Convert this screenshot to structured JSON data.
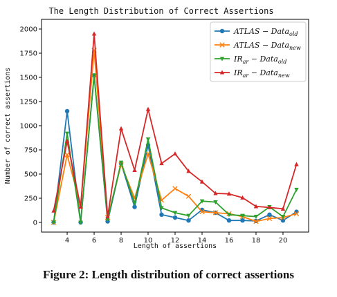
{
  "chart_data": {
    "type": "line",
    "title": "The Length Distribution of Correct Assertions",
    "xlabel": "Length of assertions",
    "ylabel": "Number of correct assertions",
    "x": [
      3,
      4,
      5,
      6,
      7,
      8,
      9,
      10,
      11,
      12,
      13,
      14,
      15,
      16,
      17,
      18,
      19,
      20,
      21
    ],
    "xlim": [
      2.1,
      21.9
    ],
    "ylim": [
      -100,
      2100
    ],
    "xticks": [
      4,
      6,
      8,
      10,
      12,
      14,
      16,
      18,
      20
    ],
    "yticks": [
      0,
      250,
      500,
      750,
      1000,
      1250,
      1500,
      1750,
      2000
    ],
    "grid": false,
    "legend_position": "top-right",
    "series": [
      {
        "name": "ATLAS − Data",
        "subscript": "old",
        "color": "#1f77b4",
        "marker": "circle",
        "values": [
          0,
          1150,
          0,
          1520,
          10,
          610,
          160,
          800,
          80,
          50,
          20,
          130,
          100,
          20,
          20,
          15,
          80,
          20,
          110
        ]
      },
      {
        "name": "ATLAS − Data",
        "subscript": "new",
        "color": "#ff7f0e",
        "marker": "x",
        "values": [
          0,
          700,
          170,
          1780,
          50,
          600,
          250,
          710,
          230,
          350,
          270,
          110,
          100,
          90,
          60,
          10,
          40,
          50,
          90
        ]
      },
      {
        "name": "IR",
        "sub_before": "ar",
        "name_after": " − Data",
        "subscript": "old",
        "color": "#2ca02c",
        "marker": "triangle-down",
        "values": [
          0,
          920,
          0,
          1520,
          30,
          620,
          200,
          860,
          150,
          100,
          70,
          220,
          210,
          80,
          70,
          60,
          160,
          60,
          340
        ]
      },
      {
        "name": "IR",
        "sub_before": "ar",
        "name_after": " − Data",
        "subscript": "new",
        "color": "#d62728",
        "marker": "triangle-up",
        "values": [
          120,
          840,
          160,
          1950,
          60,
          970,
          540,
          1170,
          610,
          710,
          530,
          420,
          300,
          295,
          255,
          165,
          155,
          140,
          600
        ]
      }
    ]
  },
  "caption": "Figure 2: Length distribution of correct assertions"
}
